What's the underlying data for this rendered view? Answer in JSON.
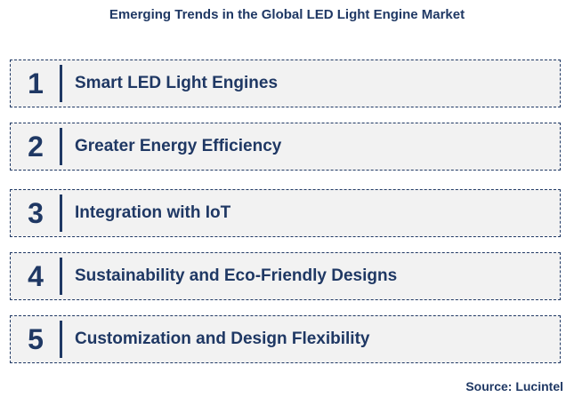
{
  "title": "Emerging Trends in the Global LED Light Engine Market",
  "items": [
    {
      "number": "1",
      "label": "Smart LED Light Engines"
    },
    {
      "number": "2",
      "label": "Greater Energy Efficiency"
    },
    {
      "number": "3",
      "label": "Integration with IoT"
    },
    {
      "number": "4",
      "label": "Sustainability and Eco-Friendly Designs"
    },
    {
      "number": "5",
      "label": "Customization and Design Flexibility"
    }
  ],
  "source": "Source: Lucintel"
}
